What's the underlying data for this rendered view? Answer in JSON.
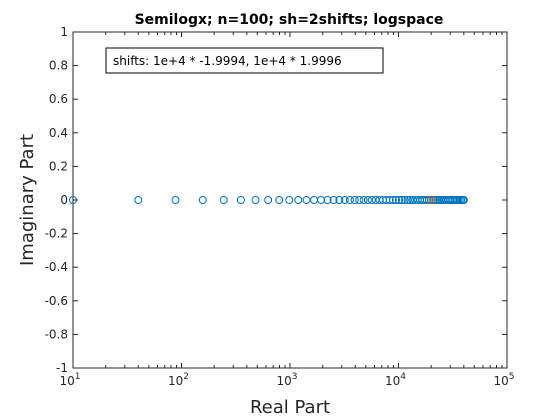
{
  "chart_data": {
    "type": "scatter",
    "title": "Semilogx; n=100; sh=2shifts; logspace",
    "xlabel": "Real Part",
    "ylabel": "Imaginary Part",
    "xscale": "log",
    "xlim": [
      10,
      100000
    ],
    "ylim": [
      -1,
      1
    ],
    "x_ticks": [
      {
        "base": "10",
        "exp": "1",
        "value": 10
      },
      {
        "base": "10",
        "exp": "2",
        "value": 100
      },
      {
        "base": "10",
        "exp": "3",
        "value": 1000
      },
      {
        "base": "10",
        "exp": "4",
        "value": 10000
      },
      {
        "base": "10",
        "exp": "5",
        "value": 100000
      }
    ],
    "y_ticks": [
      "1",
      "0.8",
      "0.6",
      "0.4",
      "0.2",
      "0",
      "-0.2",
      "-0.4",
      "-0.6",
      "-0.8",
      "-1"
    ],
    "grid": false,
    "annotation": "shifts: 1e+4 * -1.9994, 1e+4 * 1.9996",
    "series": [
      {
        "color": "#0072BD",
        "marker": "circle-open",
        "x": [
          10,
          40,
          88,
          157,
          245,
          353,
          481,
          629,
          797,
          985,
          1192,
          1419,
          1666,
          1932,
          2218,
          2524,
          2850,
          3196,
          3561,
          3946,
          4351,
          4775,
          5219,
          5683,
          6167,
          6670,
          7193,
          7736,
          8299,
          8881,
          9483,
          10105,
          10746,
          11407,
          12088,
          12789,
          13509,
          14249,
          15009,
          15788,
          16587,
          17406,
          18245,
          19103,
          19981,
          20879,
          21796,
          22733,
          23690,
          24667,
          25663,
          26679,
          27715,
          28770,
          29845,
          30940,
          32054,
          33188,
          34342,
          35516,
          36709,
          37922,
          39155,
          40000
        ],
        "y": [
          0,
          0,
          0,
          0,
          0,
          0,
          0,
          0,
          0,
          0,
          0,
          0,
          0,
          0,
          0,
          0,
          0,
          0,
          0,
          0,
          0,
          0,
          0,
          0,
          0,
          0,
          0,
          0,
          0,
          0,
          0,
          0,
          0,
          0,
          0,
          0,
          0,
          0,
          0,
          0,
          0,
          0,
          0,
          0,
          0,
          0,
          0,
          0,
          0,
          0,
          0,
          0,
          0,
          0,
          0,
          0,
          0,
          0,
          0,
          0,
          0,
          0,
          0,
          0
        ]
      },
      {
        "color": "#D95319",
        "marker": "circle-open",
        "x": [
          19996
        ],
        "y": [
          0
        ]
      }
    ]
  }
}
